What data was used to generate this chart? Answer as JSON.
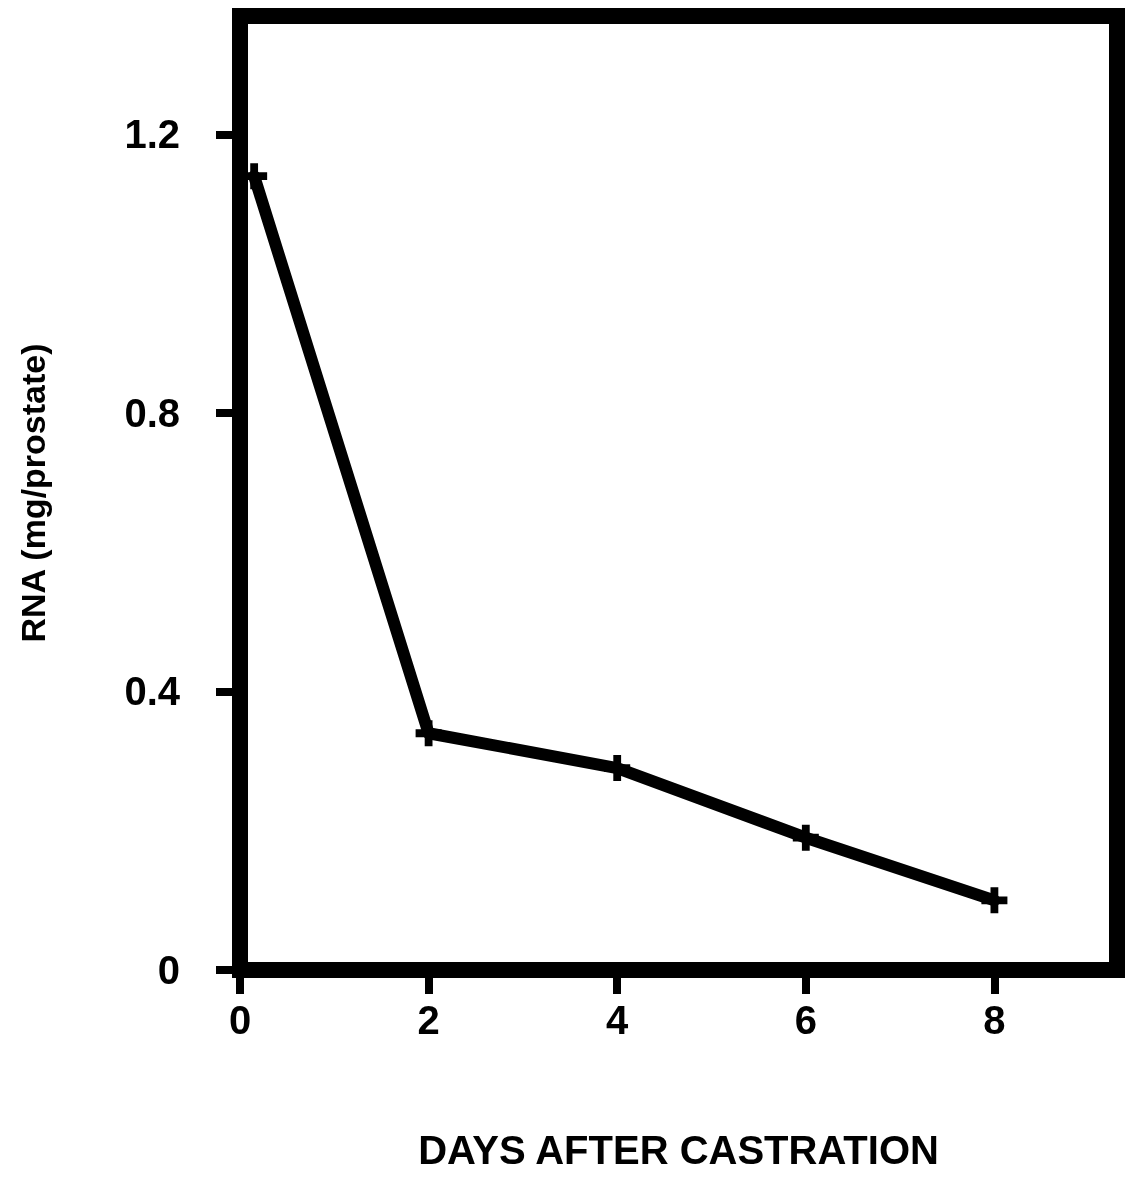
{
  "chart_data": {
    "type": "line",
    "xlabel": "DAYS AFTER CASTRATION",
    "ylabel": "RNA (mg/prostate)",
    "x": [
      0.15,
      2,
      4,
      6,
      8
    ],
    "series": [
      {
        "color": "#000000",
        "values": [
          1.14,
          0.34,
          0.29,
          0.19,
          0.1
        ]
      }
    ],
    "xlim": [
      0,
      9.3
    ],
    "xticks": [
      0,
      2,
      4,
      6,
      8
    ],
    "ylim": [
      0,
      1.37
    ],
    "yticks": [
      0,
      0.4,
      0.8,
      1.2
    ],
    "marker": "cross",
    "line_style": "solid"
  }
}
